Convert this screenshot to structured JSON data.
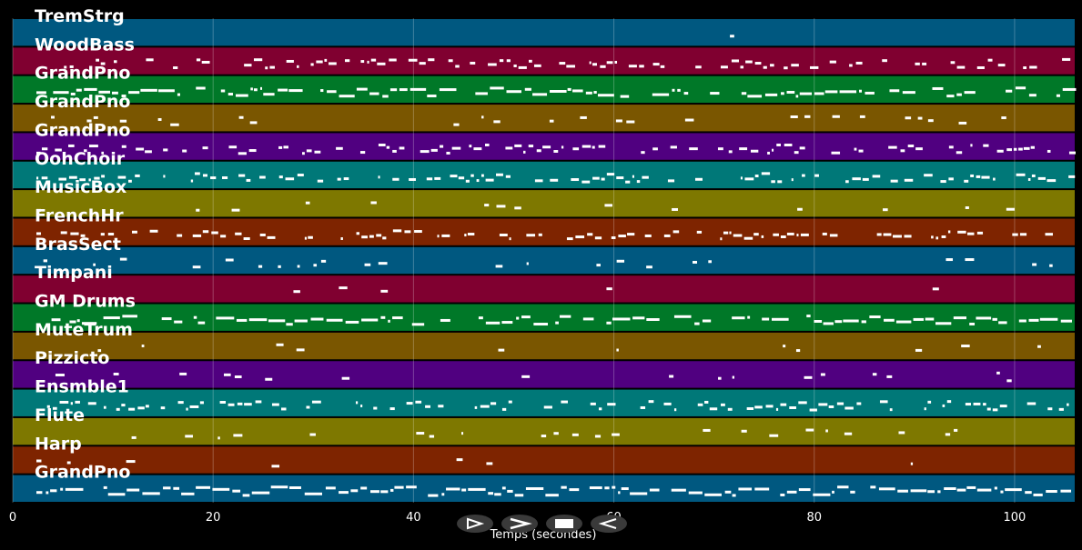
{
  "timeline": {
    "x_axis_label": "Temps (secondes)",
    "x_range": [
      0,
      106
    ],
    "x_ticks": [
      "0",
      "20",
      "40",
      "60",
      "80",
      "100"
    ],
    "grid": true
  },
  "tracks": [
    {
      "name": "TremStrg",
      "color": "#005880"
    },
    {
      "name": "WoodBass",
      "color": "#800030"
    },
    {
      "name": "GrandPno",
      "color": "#007828"
    },
    {
      "name": "GrandPno",
      "color": "#7a5600"
    },
    {
      "name": "GrandPno",
      "color": "#500080"
    },
    {
      "name": "OohChoir",
      "color": "#007878"
    },
    {
      "name": "MusicBox",
      "color": "#7e7800"
    },
    {
      "name": "FrenchHr",
      "color": "#7e2400"
    },
    {
      "name": "BrasSect",
      "color": "#005880"
    },
    {
      "name": "Timpani",
      "color": "#800030"
    },
    {
      "name": "GM Drums",
      "color": "#007828"
    },
    {
      "name": "MuteTrum",
      "color": "#7a5600"
    },
    {
      "name": "Pizzicto",
      "color": "#500080"
    },
    {
      "name": "Ensmble1",
      "color": "#007878"
    },
    {
      "name": "Flute",
      "color": "#7e7800"
    },
    {
      "name": "Harp",
      "color": "#7e2400"
    },
    {
      "name": "GrandPno",
      "color": "#005880"
    }
  ],
  "controls": [
    {
      "icon": "play-outline-icon"
    },
    {
      "icon": "fast-forward-icon"
    },
    {
      "icon": "stop-icon"
    },
    {
      "icon": "rewind-icon"
    }
  ],
  "note_color": "#ffffff"
}
